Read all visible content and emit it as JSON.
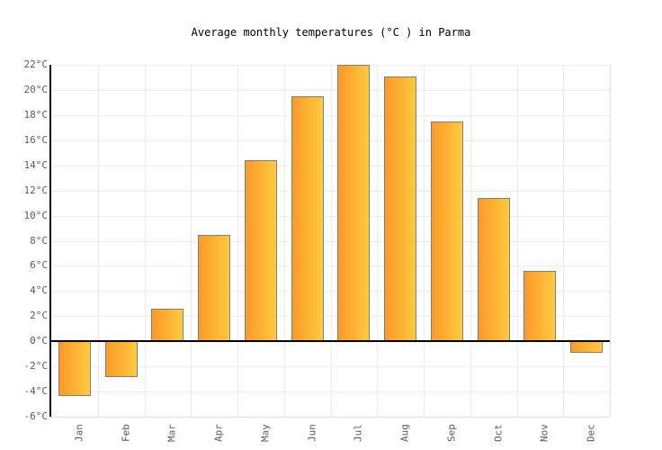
{
  "title": "Average monthly temperatures (°C ) in Parma",
  "chart_data": {
    "type": "bar",
    "title": "Average monthly temperatures (°C ) in Parma",
    "categories": [
      "Jan",
      "Feb",
      "Mar",
      "Apr",
      "May",
      "Jun",
      "Jul",
      "Aug",
      "Sep",
      "Oct",
      "Nov",
      "Dec"
    ],
    "values": [
      -4.4,
      -2.9,
      2.6,
      8.5,
      14.4,
      19.5,
      22.0,
      21.1,
      17.5,
      11.4,
      5.6,
      -0.9
    ],
    "unit": "°C",
    "xlabel": "",
    "ylabel": "",
    "ylim": [
      -6,
      22
    ],
    "ytick_step": 2,
    "ytick_labels": [
      "22°C",
      "20°C",
      "18°C",
      "16°C",
      "14°C",
      "12°C",
      "10°C",
      "8°C",
      "6°C",
      "4°C",
      "2°C",
      "0°C",
      "-2°C",
      "-4°C",
      "-6°C"
    ],
    "grid": true,
    "legend": false,
    "colors": {
      "bar_gradient_left": "#fb9a29",
      "bar_gradient_right": "#ffc93f",
      "bar_border": "#7f7f7f",
      "axis": "#000000",
      "gridline": "#ececec",
      "plot_border": "#e0e0e0",
      "tick_text": "#5c5c5c",
      "title_text": "#000000",
      "background": "#ffffff"
    }
  }
}
